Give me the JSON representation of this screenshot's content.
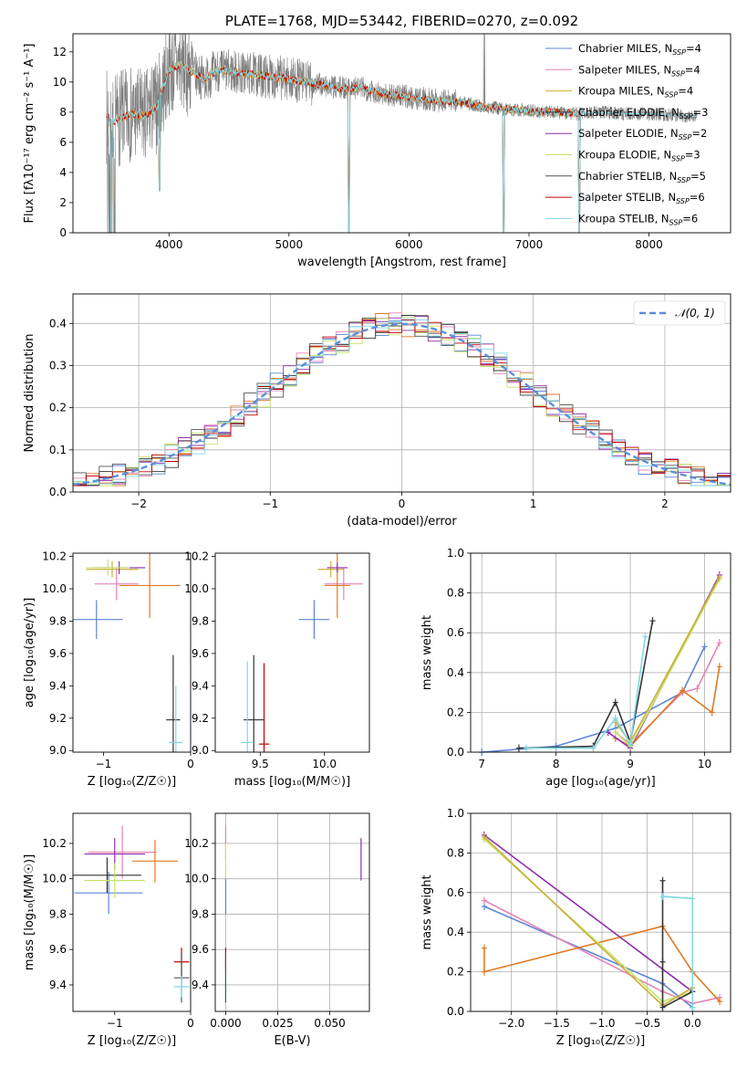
{
  "colors": {
    "Chabrier MILES": "#5b86d6",
    "Salpeter MILES": "#e683b4",
    "Kroupa MILES": "#c9b03a",
    "Chabrier ELODIE": "#333333",
    "Salpeter ELODIE": "#8e2fad",
    "Kroupa ELODIE": "#c7e56a",
    "Chabrier STELIB": "#555555",
    "Salpeter STELIB": "#c00000",
    "Kroupa STELIB": "#7fd8e3",
    "orange": "#e07a22",
    "spectrum": "#7f7f7f",
    "normal": "#5b8fd6"
  },
  "chart_data": [
    {
      "id": "spectrum",
      "type": "line",
      "title": "PLATE=1768, MJD=53442, FIBERID=0270, z=0.092",
      "xlabel": "wavelength [Angstrom, rest frame]",
      "ylabel": "Flux [fλ10⁻¹⁷ erg cm⁻² s⁻¹ A⁻¹]",
      "xlim": [
        3200,
        8680
      ],
      "ylim": [
        0,
        13.2
      ],
      "xticks": [
        "4000",
        "5000",
        "6000",
        "7000",
        "8000"
      ],
      "yticks": [
        "0",
        "2",
        "4",
        "6",
        "8",
        "10",
        "12"
      ],
      "grid": false,
      "legend_position": "top-right",
      "legend": [
        {
          "name": "Chabrier MILES",
          "sub": "4"
        },
        {
          "name": "Salpeter MILES",
          "sub": "4"
        },
        {
          "name": "Kroupa MILES",
          "sub": "4"
        },
        {
          "name": "Chabrier ELODIE",
          "sub": "3"
        },
        {
          "name": "Salpeter ELODIE",
          "sub": "2"
        },
        {
          "name": "Kroupa ELODIE",
          "sub": "3"
        },
        {
          "name": "Chabrier STELIB",
          "sub": "5"
        },
        {
          "name": "Salpeter STELIB",
          "sub": "6"
        },
        {
          "name": "Kroupa STELIB",
          "sub": "6"
        }
      ],
      "model_continuum": [
        [
          3500,
          7.2
        ],
        [
          3600,
          7.6
        ],
        [
          3700,
          7.9
        ],
        [
          3800,
          7.7
        ],
        [
          3900,
          8.4
        ],
        [
          4000,
          10.8
        ],
        [
          4100,
          11.2
        ],
        [
          4200,
          10.6
        ],
        [
          4300,
          10.2
        ],
        [
          4400,
          10.8
        ],
        [
          4600,
          10.6
        ],
        [
          4800,
          10.4
        ],
        [
          5000,
          10.2
        ],
        [
          5200,
          9.9
        ],
        [
          5400,
          9.6
        ],
        [
          5600,
          9.6
        ],
        [
          5800,
          9.2
        ],
        [
          6000,
          9.0
        ],
        [
          6200,
          8.8
        ],
        [
          6400,
          8.7
        ],
        [
          6600,
          8.4
        ],
        [
          6800,
          8.2
        ],
        [
          7000,
          8.1
        ],
        [
          7200,
          8.0
        ],
        [
          7400,
          7.9
        ],
        [
          7600,
          8.0
        ],
        [
          7800,
          7.9
        ],
        [
          8000,
          7.9
        ],
        [
          8200,
          7.8
        ],
        [
          8400,
          7.7
        ]
      ],
      "data_range": [
        3480,
        8400
      ],
      "model_dips": [
        [
          3920,
          2.8
        ],
        [
          5500,
          0.0
        ],
        [
          6790,
          0.0
        ],
        [
          7420,
          0.0
        ],
        [
          3520,
          0.0
        ]
      ]
    },
    {
      "id": "residuals",
      "type": "histogram",
      "xlabel": "(data-model)/error",
      "ylabel": "Normed distribution",
      "xlim": [
        -2.5,
        2.5
      ],
      "ylim": [
        0,
        0.47
      ],
      "xticks": [
        "−2",
        "−1",
        "0",
        "1",
        "2"
      ],
      "yticks": [
        "0.0",
        "0.1",
        "0.2",
        "0.3",
        "0.4"
      ],
      "grid": true,
      "legend_position": "top-right",
      "legend": [
        "𝒩(0, 1)"
      ],
      "bin_width": 0.1
    },
    {
      "id": "age-vs-z",
      "type": "scatter",
      "xlabel": "Z [log₁₀(Z/Z☉)]",
      "ylabel": "age  [log₁₀(age/yr)]",
      "xlim": [
        -1.35,
        0.0
      ],
      "ylim": [
        8.99,
        10.22
      ],
      "xticks": [
        "−1",
        "0"
      ],
      "yticks": [
        "9.0",
        "9.2",
        "9.4",
        "9.6",
        "9.8",
        "10.0",
        "10.2"
      ],
      "points": [
        {
          "s": "Chabrier MILES",
          "x": -1.08,
          "xe": 0.3,
          "y": 9.81,
          "ye": 0.12
        },
        {
          "s": "Salpeter MILES",
          "x": -0.85,
          "xe": 0.25,
          "y": 10.03,
          "ye": 0.1
        },
        {
          "s": "orange",
          "x": -0.47,
          "xe": 0.35,
          "y": 10.02,
          "ye": 0.2
        },
        {
          "s": "Kroupa MILES",
          "x": -0.9,
          "xe": 0.3,
          "y": 10.12,
          "ye": 0.05
        },
        {
          "s": "Salpeter ELODIE",
          "x": -0.82,
          "xe": 0.3,
          "y": 10.13,
          "ye": 0.04
        },
        {
          "s": "Kroupa ELODIE",
          "x": -0.95,
          "xe": 0.25,
          "y": 10.13,
          "ye": 0.05
        },
        {
          "s": "Chabrier ELODIE",
          "x": -0.2,
          "xe": 0.08,
          "y": 9.19,
          "ye": 0.4
        },
        {
          "s": "Kroupa STELIB",
          "x": -0.17,
          "xe": 0.08,
          "y": 9.05,
          "ye": 0.35
        }
      ]
    },
    {
      "id": "age-vs-mass",
      "type": "scatter",
      "xlabel": "mass [log₁₀(M/M☉)]",
      "ylabel": "",
      "xlim": [
        9.15,
        10.35
      ],
      "ylim": [
        8.99,
        10.22
      ],
      "xticks": [
        "9.5",
        "10.0"
      ],
      "yticks": [
        "9.0",
        "9.2",
        "9.4",
        "9.6",
        "9.8",
        "10.0",
        "10.2"
      ],
      "points": [
        {
          "s": "Chabrier MILES",
          "x": 9.92,
          "xe": 0.12,
          "y": 9.81,
          "ye": 0.12
        },
        {
          "s": "Salpeter MILES",
          "x": 10.15,
          "xe": 0.15,
          "y": 10.03,
          "ye": 0.1
        },
        {
          "s": "orange",
          "x": 10.1,
          "xe": 0.1,
          "y": 10.02,
          "ye": 0.2
        },
        {
          "s": "Kroupa MILES",
          "x": 10.05,
          "xe": 0.1,
          "y": 10.12,
          "ye": 0.05
        },
        {
          "s": "Salpeter ELODIE",
          "x": 10.1,
          "xe": 0.08,
          "y": 10.13,
          "ye": 0.03
        },
        {
          "s": "Chabrier ELODIE",
          "x": 9.45,
          "xe": 0.08,
          "y": 9.19,
          "ye": 0.4
        },
        {
          "s": "Salpeter STELIB",
          "x": 9.53,
          "xe": 0.04,
          "y": 9.04,
          "ye": 0.5
        },
        {
          "s": "Kroupa STELIB",
          "x": 9.4,
          "xe": 0.05,
          "y": 9.05,
          "ye": 0.5
        }
      ]
    },
    {
      "id": "weight-vs-age",
      "type": "line",
      "xlabel": "age  [log₁₀(age/yr)]",
      "ylabel": "mass weight",
      "xlim": [
        6.85,
        10.35
      ],
      "ylim": [
        0,
        1.0
      ],
      "xticks": [
        "7",
        "8",
        "9",
        "10"
      ],
      "yticks": [
        "0.0",
        "0.2",
        "0.4",
        "0.6",
        "0.8",
        "1.0"
      ],
      "grid": true,
      "series": [
        {
          "s": "Chabrier MILES",
          "pts": [
            [
              7.0,
              0.0
            ],
            [
              8.0,
              0.03
            ],
            [
              8.8,
              0.12
            ],
            [
              9.7,
              0.3
            ],
            [
              10.0,
              0.53
            ]
          ]
        },
        {
          "s": "Salpeter MILES",
          "pts": [
            [
              8.8,
              0.1
            ],
            [
              9.0,
              0.04
            ],
            [
              9.7,
              0.3
            ],
            [
              9.9,
              0.32
            ],
            [
              10.2,
              0.55
            ]
          ]
        },
        {
          "s": "orange",
          "pts": [
            [
              8.8,
              0.07
            ],
            [
              9.0,
              0.03
            ],
            [
              9.7,
              0.31
            ],
            [
              10.1,
              0.2
            ],
            [
              10.2,
              0.43
            ]
          ]
        },
        {
          "s": "Chabrier ELODIE",
          "pts": [
            [
              7.5,
              0.02
            ],
            [
              8.5,
              0.03
            ],
            [
              8.8,
              0.25
            ],
            [
              9.0,
              0.05
            ],
            [
              9.3,
              0.66
            ]
          ]
        },
        {
          "s": "Salpeter ELODIE",
          "pts": [
            [
              8.7,
              0.1
            ],
            [
              9.0,
              0.02
            ],
            [
              10.2,
              0.89
            ]
          ]
        },
        {
          "s": "Kroupa ELODIE",
          "pts": [
            [
              8.8,
              0.1
            ],
            [
              9.0,
              0.03
            ],
            [
              10.2,
              0.87
            ]
          ]
        },
        {
          "s": "Kroupa MILES",
          "pts": [
            [
              8.8,
              0.15
            ],
            [
              9.0,
              0.05
            ],
            [
              10.2,
              0.88
            ]
          ]
        },
        {
          "s": "Kroupa STELIB",
          "pts": [
            [
              7.6,
              0.02
            ],
            [
              8.5,
              0.02
            ],
            [
              8.8,
              0.17
            ],
            [
              9.0,
              0.04
            ],
            [
              9.2,
              0.58
            ]
          ]
        }
      ]
    },
    {
      "id": "mass-vs-z",
      "type": "scatter",
      "xlabel": "Z [log₁₀(Z/Z☉)]",
      "ylabel": "mass [log₁₀(M/M☉)]",
      "xlim": [
        -1.55,
        0.0
      ],
      "ylim": [
        9.25,
        10.37
      ],
      "xticks": [
        "−1",
        "0"
      ],
      "yticks": [
        "9.4",
        "9.6",
        "9.8",
        "10.0",
        "10.2"
      ],
      "points": [
        {
          "s": "Chabrier MILES",
          "x": -1.08,
          "xe": 0.45,
          "y": 9.92,
          "ye": 0.12
        },
        {
          "s": "Salpeter MILES",
          "x": -0.9,
          "xe": 0.45,
          "y": 10.15,
          "ye": 0.15
        },
        {
          "s": "orange",
          "x": -0.47,
          "xe": 0.3,
          "y": 10.1,
          "ye": 0.12
        },
        {
          "s": "Salpeter ELODIE",
          "x": -1.0,
          "xe": 0.4,
          "y": 10.14,
          "ye": 0.09
        },
        {
          "s": "Chabrier ELODIE",
          "x": -1.1,
          "xe": 0.45,
          "y": 10.02,
          "ye": 0.1
        },
        {
          "s": "Kroupa ELODIE",
          "x": -1.0,
          "xe": 0.4,
          "y": 9.99,
          "ye": 0.1
        },
        {
          "s": "Salpeter STELIB",
          "x": -0.12,
          "xe": 0.1,
          "y": 9.53,
          "ye": 0.08
        },
        {
          "s": "Chabrier STELIB",
          "x": -0.12,
          "xe": 0.1,
          "y": 9.44,
          "ye": 0.14
        },
        {
          "s": "Kroupa STELIB",
          "x": -0.12,
          "xe": 0.1,
          "y": 9.39,
          "ye": 0.06
        }
      ]
    },
    {
      "id": "mass-vs-ebv",
      "type": "scatter",
      "xlabel": "E(B-V)",
      "ylabel": "",
      "xlim": [
        -0.005,
        0.069
      ],
      "ylim": [
        9.25,
        10.37
      ],
      "xticks": [
        "0.000",
        "0.025",
        "0.050"
      ],
      "yticks": [
        "9.4",
        "9.6",
        "9.8",
        "10.0",
        "10.2"
      ],
      "points": [
        {
          "s": "Salpeter MILES",
          "x": 0.0,
          "xe": 0.0,
          "y": 10.2,
          "ye": 0.1
        },
        {
          "s": "Kroupa ELODIE",
          "x": 0.0,
          "xe": 0.0,
          "y": 10.1,
          "ye": 0.1
        },
        {
          "s": "Chabrier MILES",
          "x": 0.0,
          "xe": 0.0,
          "y": 9.9,
          "ye": 0.1
        },
        {
          "s": "Salpeter STELIB",
          "x": 0.0,
          "xe": 0.0,
          "y": 9.55,
          "ye": 0.06
        },
        {
          "s": "Kroupa STELIB",
          "x": 0.0,
          "xe": 0.0,
          "y": 9.4,
          "ye": 0.1
        },
        {
          "s": "Chabrier STELIB",
          "x": 0.0,
          "xe": 0.0,
          "y": 9.44,
          "ye": 0.14
        },
        {
          "s": "Salpeter ELODIE",
          "x": 0.065,
          "xe": 0.0,
          "y": 10.11,
          "ye": 0.12
        }
      ]
    },
    {
      "id": "weight-vs-z",
      "type": "line",
      "xlabel": "Z [log₁₀(Z/Z☉)]",
      "ylabel": "mass weight",
      "xlim": [
        -2.45,
        0.42
      ],
      "ylim": [
        0,
        1.0
      ],
      "xticks": [
        "−2.0",
        "−1.5",
        "−1.0",
        "−0.5",
        "0.0"
      ],
      "yticks": [
        "0.0",
        "0.2",
        "0.4",
        "0.6",
        "0.8",
        "1.0"
      ],
      "grid": true,
      "series": [
        {
          "s": "Chabrier MILES",
          "pts": [
            [
              -2.3,
              0.53
            ],
            [
              -0.33,
              0.14
            ],
            [
              0.0,
              0.02
            ]
          ]
        },
        {
          "s": "Salpeter MILES",
          "pts": [
            [
              -2.3,
              0.56
            ],
            [
              -0.33,
              0.1
            ],
            [
              0.0,
              0.04
            ],
            [
              0.3,
              0.07
            ]
          ]
        },
        {
          "s": "orange",
          "pts": [
            [
              -2.3,
              0.32
            ],
            [
              -2.3,
              0.2
            ],
            [
              -0.33,
              0.43
            ],
            [
              0.0,
              0.2
            ],
            [
              0.3,
              0.05
            ]
          ]
        },
        {
          "s": "Salpeter ELODIE",
          "pts": [
            [
              -2.3,
              0.89
            ],
            [
              0.0,
              0.1
            ]
          ]
        },
        {
          "s": "Kroupa ELODIE",
          "pts": [
            [
              -2.3,
              0.87
            ],
            [
              -0.33,
              0.05
            ],
            [
              0.0,
              0.1
            ]
          ]
        },
        {
          "s": "Kroupa MILES",
          "pts": [
            [
              -2.3,
              0.88
            ],
            [
              -0.33,
              0.03
            ],
            [
              0.0,
              0.12
            ]
          ]
        },
        {
          "s": "Chabrier ELODIE",
          "pts": [
            [
              -0.33,
              0.66
            ],
            [
              -0.33,
              0.25
            ],
            [
              -0.33,
              0.02
            ],
            [
              0.0,
              0.1
            ]
          ]
        },
        {
          "s": "Kroupa STELIB",
          "pts": [
            [
              -0.33,
              0.58
            ],
            [
              0.0,
              0.57
            ],
            [
              0.0,
              0.02
            ]
          ]
        }
      ]
    }
  ]
}
